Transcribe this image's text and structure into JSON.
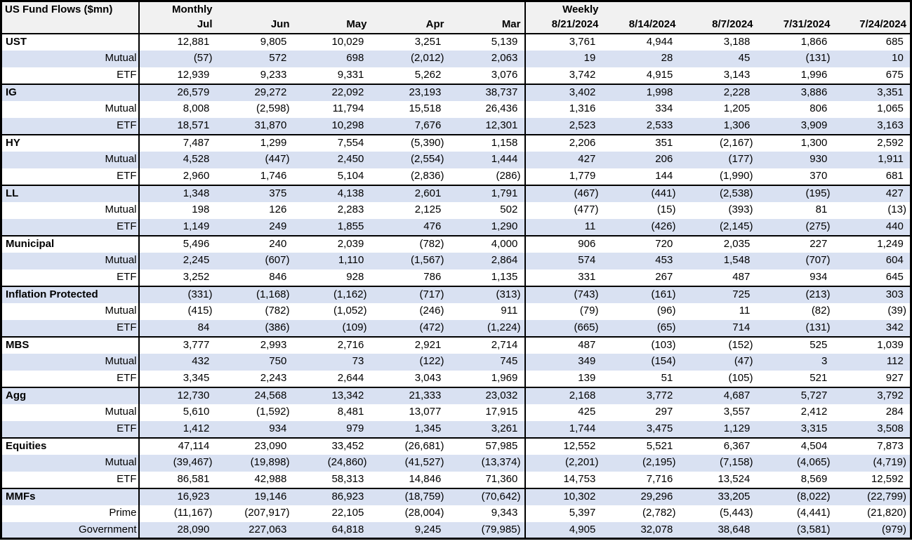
{
  "colors": {
    "stripe": "#d9e1f2",
    "header_bg": "#f1f1f1",
    "border": "#000000",
    "text": "#000000"
  },
  "chart_data": {
    "type": "table",
    "title": "US Fund Flows ($mn)",
    "column_groups": [
      {
        "label": "Monthly",
        "columns": [
          "Jul",
          "Jun",
          "May",
          "Apr",
          "Mar"
        ]
      },
      {
        "label": "Weekly",
        "columns": [
          "8/21/2024",
          "8/14/2024",
          "8/7/2024",
          "7/31/2024",
          "7/24/2024"
        ]
      }
    ],
    "rows": [
      {
        "label": "UST",
        "type": "category",
        "values": [
          "12,881",
          "9,805",
          "10,029",
          "3,251",
          "5,139",
          "3,761",
          "4,944",
          "3,188",
          "1,866",
          "685"
        ]
      },
      {
        "label": "Mutual",
        "type": "sub",
        "values": [
          "(57)",
          "572",
          "698",
          "(2,012)",
          "2,063",
          "19",
          "28",
          "45",
          "(131)",
          "10"
        ]
      },
      {
        "label": "ETF",
        "type": "sub",
        "values": [
          "12,939",
          "9,233",
          "9,331",
          "5,262",
          "3,076",
          "3,742",
          "4,915",
          "3,143",
          "1,996",
          "675"
        ]
      },
      {
        "label": "IG",
        "type": "category",
        "values": [
          "26,579",
          "29,272",
          "22,092",
          "23,193",
          "38,737",
          "3,402",
          "1,998",
          "2,228",
          "3,886",
          "3,351"
        ]
      },
      {
        "label": "Mutual",
        "type": "sub",
        "values": [
          "8,008",
          "(2,598)",
          "11,794",
          "15,518",
          "26,436",
          "1,316",
          "334",
          "1,205",
          "806",
          "1,065"
        ]
      },
      {
        "label": "ETF",
        "type": "sub",
        "values": [
          "18,571",
          "31,870",
          "10,298",
          "7,676",
          "12,301",
          "2,523",
          "2,533",
          "1,306",
          "3,909",
          "3,163"
        ]
      },
      {
        "label": "HY",
        "type": "category",
        "values": [
          "7,487",
          "1,299",
          "7,554",
          "(5,390)",
          "1,158",
          "2,206",
          "351",
          "(2,167)",
          "1,300",
          "2,592"
        ]
      },
      {
        "label": "Mutual",
        "type": "sub",
        "values": [
          "4,528",
          "(447)",
          "2,450",
          "(2,554)",
          "1,444",
          "427",
          "206",
          "(177)",
          "930",
          "1,911"
        ]
      },
      {
        "label": "ETF",
        "type": "sub",
        "values": [
          "2,960",
          "1,746",
          "5,104",
          "(2,836)",
          "(286)",
          "1,779",
          "144",
          "(1,990)",
          "370",
          "681"
        ]
      },
      {
        "label": "LL",
        "type": "category",
        "values": [
          "1,348",
          "375",
          "4,138",
          "2,601",
          "1,791",
          "(467)",
          "(441)",
          "(2,538)",
          "(195)",
          "427"
        ]
      },
      {
        "label": "Mutual",
        "type": "sub",
        "values": [
          "198",
          "126",
          "2,283",
          "2,125",
          "502",
          "(477)",
          "(15)",
          "(393)",
          "81",
          "(13)"
        ]
      },
      {
        "label": "ETF",
        "type": "sub",
        "values": [
          "1,149",
          "249",
          "1,855",
          "476",
          "1,290",
          "11",
          "(426)",
          "(2,145)",
          "(275)",
          "440"
        ]
      },
      {
        "label": "Municipal",
        "type": "category",
        "values": [
          "5,496",
          "240",
          "2,039",
          "(782)",
          "4,000",
          "906",
          "720",
          "2,035",
          "227",
          "1,249"
        ]
      },
      {
        "label": "Mutual",
        "type": "sub",
        "values": [
          "2,245",
          "(607)",
          "1,110",
          "(1,567)",
          "2,864",
          "574",
          "453",
          "1,548",
          "(707)",
          "604"
        ]
      },
      {
        "label": "ETF",
        "type": "sub",
        "values": [
          "3,252",
          "846",
          "928",
          "786",
          "1,135",
          "331",
          "267",
          "487",
          "934",
          "645"
        ]
      },
      {
        "label": "Inflation Protected",
        "type": "category",
        "values": [
          "(331)",
          "(1,168)",
          "(1,162)",
          "(717)",
          "(313)",
          "(743)",
          "(161)",
          "725",
          "(213)",
          "303"
        ]
      },
      {
        "label": "Mutual",
        "type": "sub",
        "values": [
          "(415)",
          "(782)",
          "(1,052)",
          "(246)",
          "911",
          "(79)",
          "(96)",
          "11",
          "(82)",
          "(39)"
        ]
      },
      {
        "label": "ETF",
        "type": "sub",
        "values": [
          "84",
          "(386)",
          "(109)",
          "(472)",
          "(1,224)",
          "(665)",
          "(65)",
          "714",
          "(131)",
          "342"
        ]
      },
      {
        "label": "MBS",
        "type": "category",
        "values": [
          "3,777",
          "2,993",
          "2,716",
          "2,921",
          "2,714",
          "487",
          "(103)",
          "(152)",
          "525",
          "1,039"
        ]
      },
      {
        "label": "Mutual",
        "type": "sub",
        "values": [
          "432",
          "750",
          "73",
          "(122)",
          "745",
          "349",
          "(154)",
          "(47)",
          "3",
          "112"
        ]
      },
      {
        "label": "ETF",
        "type": "sub",
        "values": [
          "3,345",
          "2,243",
          "2,644",
          "3,043",
          "1,969",
          "139",
          "51",
          "(105)",
          "521",
          "927"
        ]
      },
      {
        "label": "Agg",
        "type": "category",
        "values": [
          "12,730",
          "24,568",
          "13,342",
          "21,333",
          "23,032",
          "2,168",
          "3,772",
          "4,687",
          "5,727",
          "3,792"
        ]
      },
      {
        "label": "Mutual",
        "type": "sub",
        "values": [
          "5,610",
          "(1,592)",
          "8,481",
          "13,077",
          "17,915",
          "425",
          "297",
          "3,557",
          "2,412",
          "284"
        ]
      },
      {
        "label": "ETF",
        "type": "sub",
        "values": [
          "1,412",
          "934",
          "979",
          "1,345",
          "3,261",
          "1,744",
          "3,475",
          "1,129",
          "3,315",
          "3,508"
        ]
      },
      {
        "label": "Equities",
        "type": "category",
        "values": [
          "47,114",
          "23,090",
          "33,452",
          "(26,681)",
          "57,985",
          "12,552",
          "5,521",
          "6,367",
          "4,504",
          "7,873"
        ]
      },
      {
        "label": "Mutual",
        "type": "sub",
        "values": [
          "(39,467)",
          "(19,898)",
          "(24,860)",
          "(41,527)",
          "(13,374)",
          "(2,201)",
          "(2,195)",
          "(7,158)",
          "(4,065)",
          "(4,719)"
        ]
      },
      {
        "label": "ETF",
        "type": "sub",
        "values": [
          "86,581",
          "42,988",
          "58,313",
          "14,846",
          "71,360",
          "14,753",
          "7,716",
          "13,524",
          "8,569",
          "12,592"
        ]
      },
      {
        "label": "MMFs",
        "type": "category",
        "values": [
          "16,923",
          "19,146",
          "86,923",
          "(18,759)",
          "(70,642)",
          "10,302",
          "29,296",
          "33,205",
          "(8,022)",
          "(22,799)"
        ]
      },
      {
        "label": "Prime",
        "type": "sub",
        "values": [
          "(11,167)",
          "(207,917)",
          "22,105",
          "(28,004)",
          "9,343",
          "5,397",
          "(2,782)",
          "(5,443)",
          "(4,441)",
          "(21,820)"
        ]
      },
      {
        "label": "Government",
        "type": "sub",
        "values": [
          "28,090",
          "227,063",
          "64,818",
          "9,245",
          "(79,985)",
          "4,905",
          "32,078",
          "38,648",
          "(3,581)",
          "(979)"
        ]
      }
    ]
  }
}
